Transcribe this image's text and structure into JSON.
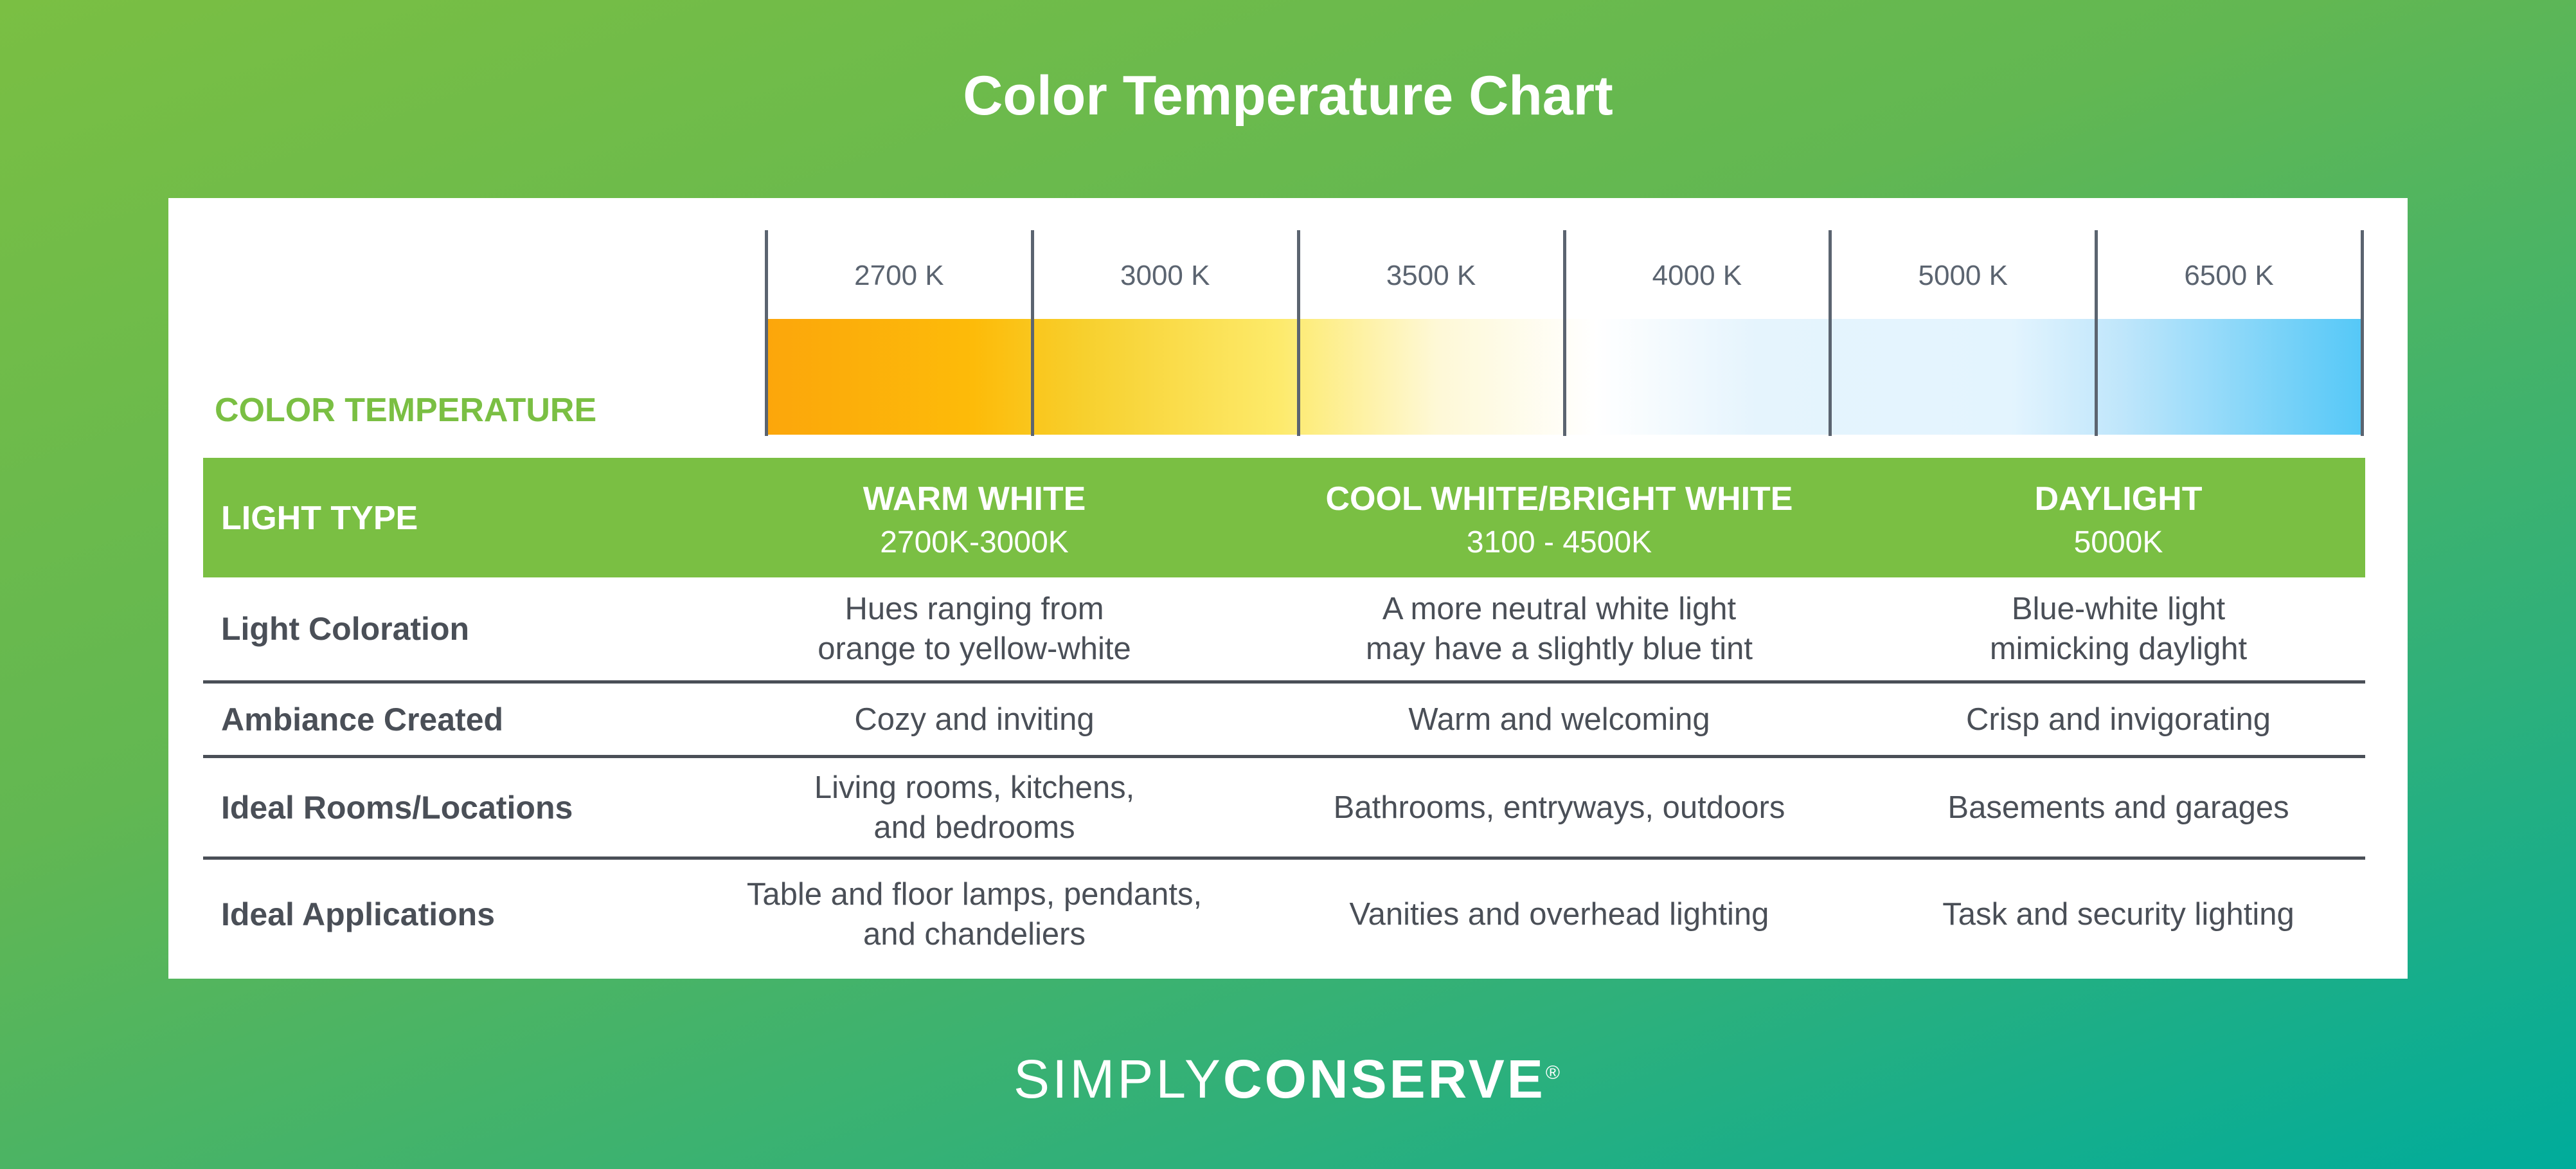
{
  "title": "Color Temperature Chart",
  "chart_data": {
    "type": "table",
    "title": "Color Temperature Chart",
    "scale_label": "COLOR TEMPERATURE",
    "scale_ticks": [
      "2700 K",
      "3000 K",
      "3500 K",
      "4000 K",
      "5000 K",
      "6500 K"
    ],
    "scale_colors": [
      "#fca60b",
      "#fdea6a",
      "#ffffff",
      "#e3f4fe",
      "#55c8f7"
    ],
    "header_label": "LIGHT TYPE",
    "columns": [
      {
        "name": "WARM WHITE",
        "range": "2700K-3000K"
      },
      {
        "name": "COOL WHITE/BRIGHT WHITE",
        "range": "3100 - 4500K"
      },
      {
        "name": "DAYLIGHT",
        "range": "5000K"
      }
    ],
    "rows": [
      {
        "label": "Light Coloration",
        "values": [
          "Hues ranging from\norange to yellow-white",
          "A more neutral white light\nmay have a slightly blue tint",
          "Blue-white light\nmimicking daylight"
        ]
      },
      {
        "label": "Ambiance Created",
        "values": [
          "Cozy and inviting",
          "Warm and welcoming",
          "Crisp and invigorating"
        ]
      },
      {
        "label": "Ideal Rooms/Locations",
        "values": [
          "Living rooms, kitchens,\nand bedrooms",
          "Bathrooms, entryways, outdoors",
          "Basements and garages"
        ]
      },
      {
        "label": "Ideal Applications",
        "values": [
          "Table and floor lamps, pendants,\nand chandeliers",
          "Vanities and overhead lighting",
          "Task and security lighting"
        ]
      }
    ]
  },
  "colors": {
    "brand_green": "#7abf43",
    "text_dark": "#4a4f57",
    "tick_gray": "#5b6470",
    "teal": "#00ac9b"
  },
  "footer": {
    "logo_part1": "SIMPLY",
    "logo_part2": "CONSERVE",
    "logo_mark": "®"
  }
}
